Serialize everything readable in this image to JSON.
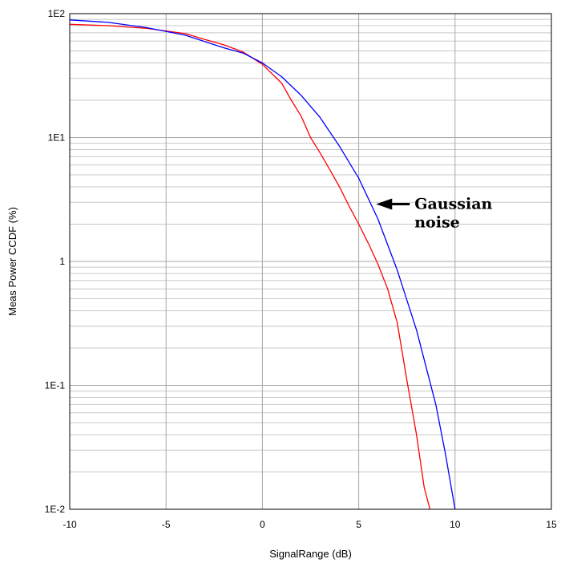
{
  "chart_data": {
    "type": "line",
    "xlabel": "SignalRange (dB)",
    "ylabel": "Meas Power CCDF (%)",
    "xlim": [
      -10,
      15
    ],
    "ylim": [
      0.01,
      100
    ],
    "y_scale": "log",
    "grid": true,
    "x_ticks": [
      "-10",
      "-5",
      "0",
      "5",
      "10",
      "15"
    ],
    "y_ticks": [
      {
        "value": 100,
        "label": "1E2"
      },
      {
        "value": 10,
        "label": "1E1"
      },
      {
        "value": 1,
        "label": "1"
      },
      {
        "value": 0.1,
        "label": "1E-1"
      },
      {
        "value": 0.01,
        "label": "1E-2"
      }
    ],
    "series": [
      {
        "color": "#ff0000",
        "points": [
          [
            -10,
            82
          ],
          [
            -8,
            80
          ],
          [
            -6,
            76
          ],
          [
            -4,
            69
          ],
          [
            -3,
            62
          ],
          [
            -2,
            56
          ],
          [
            -1,
            49
          ],
          [
            0,
            39
          ],
          [
            1,
            27.5
          ],
          [
            1.5,
            20
          ],
          [
            2,
            15
          ],
          [
            2.5,
            10
          ],
          [
            3,
            7.5
          ],
          [
            3.5,
            5.5
          ],
          [
            4,
            4
          ],
          [
            4.5,
            2.8
          ],
          [
            5,
            2.0
          ],
          [
            5.5,
            1.4
          ],
          [
            6,
            0.95
          ],
          [
            6.5,
            0.6
          ],
          [
            7,
            0.32
          ],
          [
            7.5,
            0.11
          ],
          [
            8,
            0.04
          ],
          [
            8.4,
            0.015
          ],
          [
            8.7,
            0.01
          ]
        ]
      },
      {
        "color": "#0000ff",
        "points": [
          [
            -10,
            89
          ],
          [
            -8,
            85
          ],
          [
            -6,
            77
          ],
          [
            -4,
            67
          ],
          [
            -2,
            53
          ],
          [
            -1,
            48
          ],
          [
            0,
            40
          ],
          [
            1,
            31
          ],
          [
            2,
            22
          ],
          [
            3,
            14.5
          ],
          [
            4,
            8.5
          ],
          [
            5,
            4.7
          ],
          [
            6,
            2.2
          ],
          [
            7,
            0.85
          ],
          [
            8,
            0.28
          ],
          [
            9,
            0.07
          ],
          [
            9.5,
            0.028
          ],
          [
            10,
            0.01
          ]
        ]
      }
    ],
    "annotations": [
      {
        "text_lines": [
          "Gaussian",
          "noise"
        ],
        "arrow_to": [
          5.9,
          2.9
        ]
      }
    ]
  }
}
